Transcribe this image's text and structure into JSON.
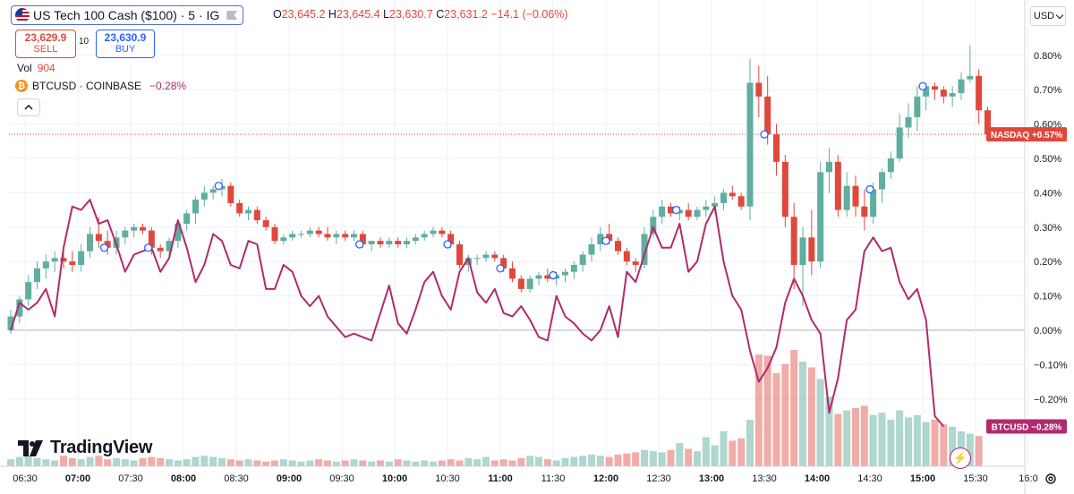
{
  "header": {
    "title": "US Tech 100 Cash ($100) · 5 · IG",
    "ohlc": [
      {
        "label": "O",
        "value": "23,645.2"
      },
      {
        "label": "H",
        "value": "23,645.4"
      },
      {
        "label": "L",
        "value": "23,630.7"
      },
      {
        "label": "C",
        "value": "23,631.2"
      },
      {
        "label": "",
        "value": "−14.1 (−0.06%)"
      }
    ],
    "sell_price": "23,629.9",
    "sell_label": "SELL",
    "spread": "10",
    "buy_price": "23,630.9",
    "buy_label": "BUY",
    "vol_label": "Vol",
    "vol_value": "904",
    "compare_symbol": "BTCUSD · COINBASE",
    "compare_change": "−0.28%",
    "currency": "USD",
    "logo_text": "TradingView"
  },
  "chart_data": {
    "type": "line",
    "percent_axis": {
      "ticks": [
        "0.80%",
        "0.70%",
        "0.60%",
        "0.50%",
        "0.40%",
        "0.30%",
        "0.20%",
        "0.10%",
        "0.00%",
        "−0.10%",
        "−0.20%"
      ],
      "range": [
        -0.32,
        0.88
      ]
    },
    "time_axis": {
      "ticks": [
        "06:30",
        "07:00",
        "07:30",
        "08:00",
        "08:30",
        "09:00",
        "09:30",
        "10:00",
        "10:30",
        "11:00",
        "11:30",
        "12:00",
        "12:30",
        "13:00",
        "13:30",
        "14:00",
        "14:30",
        "15:00",
        "15:30",
        "16:0"
      ],
      "bold": [
        "07:00",
        "08:00",
        "09:00",
        "10:00",
        "11:00",
        "12:00",
        "13:00",
        "14:00",
        "15:00"
      ]
    },
    "series": [
      {
        "name": "NASDAQ",
        "kind": "candlestick",
        "badge": "NASDAQ  +0.57%",
        "color_up": "#5fae9f",
        "color_down": "#e0483c",
        "candles": [
          [
            0.0,
            0.06,
            -0.01,
            0.04
          ],
          [
            0.04,
            0.1,
            0.02,
            0.09
          ],
          [
            0.09,
            0.16,
            0.07,
            0.14
          ],
          [
            0.14,
            0.2,
            0.12,
            0.18
          ],
          [
            0.18,
            0.22,
            0.15,
            0.2
          ],
          [
            0.2,
            0.23,
            0.17,
            0.21
          ],
          [
            0.21,
            0.24,
            0.18,
            0.2
          ],
          [
            0.2,
            0.23,
            0.17,
            0.19
          ],
          [
            0.19,
            0.25,
            0.17,
            0.23
          ],
          [
            0.23,
            0.3,
            0.21,
            0.28
          ],
          [
            0.28,
            0.33,
            0.24,
            0.26
          ],
          [
            0.26,
            0.29,
            0.22,
            0.24
          ],
          [
            0.24,
            0.29,
            0.22,
            0.27
          ],
          [
            0.27,
            0.3,
            0.25,
            0.29
          ],
          [
            0.29,
            0.31,
            0.27,
            0.3
          ],
          [
            0.3,
            0.31,
            0.28,
            0.29
          ],
          [
            0.29,
            0.3,
            0.22,
            0.24
          ],
          [
            0.24,
            0.25,
            0.21,
            0.23
          ],
          [
            0.23,
            0.27,
            0.21,
            0.26
          ],
          [
            0.26,
            0.32,
            0.24,
            0.31
          ],
          [
            0.31,
            0.35,
            0.29,
            0.34
          ],
          [
            0.34,
            0.39,
            0.31,
            0.38
          ],
          [
            0.38,
            0.42,
            0.36,
            0.4
          ],
          [
            0.4,
            0.42,
            0.38,
            0.41
          ],
          [
            0.41,
            0.44,
            0.39,
            0.42
          ],
          [
            0.42,
            0.43,
            0.36,
            0.37
          ],
          [
            0.37,
            0.38,
            0.33,
            0.34
          ],
          [
            0.34,
            0.36,
            0.32,
            0.35
          ],
          [
            0.35,
            0.36,
            0.31,
            0.32
          ],
          [
            0.32,
            0.33,
            0.29,
            0.3
          ],
          [
            0.3,
            0.31,
            0.25,
            0.26
          ],
          [
            0.26,
            0.28,
            0.25,
            0.27
          ],
          [
            0.27,
            0.29,
            0.26,
            0.28
          ],
          [
            0.28,
            0.29,
            0.27,
            0.28
          ],
          [
            0.28,
            0.3,
            0.27,
            0.29
          ],
          [
            0.29,
            0.3,
            0.27,
            0.28
          ],
          [
            0.28,
            0.3,
            0.26,
            0.27
          ],
          [
            0.27,
            0.29,
            0.25,
            0.28
          ],
          [
            0.28,
            0.29,
            0.26,
            0.27
          ],
          [
            0.27,
            0.29,
            0.26,
            0.28
          ],
          [
            0.28,
            0.29,
            0.24,
            0.25
          ],
          [
            0.25,
            0.26,
            0.23,
            0.26
          ],
          [
            0.26,
            0.27,
            0.24,
            0.25
          ],
          [
            0.25,
            0.27,
            0.24,
            0.26
          ],
          [
            0.26,
            0.27,
            0.24,
            0.25
          ],
          [
            0.25,
            0.27,
            0.24,
            0.26
          ],
          [
            0.26,
            0.28,
            0.25,
            0.27
          ],
          [
            0.27,
            0.29,
            0.26,
            0.28
          ],
          [
            0.28,
            0.3,
            0.27,
            0.29
          ],
          [
            0.29,
            0.3,
            0.27,
            0.28
          ],
          [
            0.28,
            0.29,
            0.24,
            0.25
          ],
          [
            0.25,
            0.26,
            0.18,
            0.19
          ],
          [
            0.19,
            0.22,
            0.17,
            0.21
          ],
          [
            0.21,
            0.22,
            0.19,
            0.21
          ],
          [
            0.21,
            0.23,
            0.2,
            0.22
          ],
          [
            0.22,
            0.23,
            0.2,
            0.21
          ],
          [
            0.21,
            0.22,
            0.17,
            0.18
          ],
          [
            0.18,
            0.2,
            0.14,
            0.15
          ],
          [
            0.15,
            0.16,
            0.11,
            0.12
          ],
          [
            0.12,
            0.16,
            0.11,
            0.15
          ],
          [
            0.15,
            0.17,
            0.13,
            0.16
          ],
          [
            0.16,
            0.18,
            0.14,
            0.15
          ],
          [
            0.15,
            0.17,
            0.13,
            0.16
          ],
          [
            0.16,
            0.18,
            0.14,
            0.17
          ],
          [
            0.17,
            0.2,
            0.15,
            0.19
          ],
          [
            0.19,
            0.23,
            0.17,
            0.22
          ],
          [
            0.22,
            0.27,
            0.2,
            0.25
          ],
          [
            0.25,
            0.3,
            0.23,
            0.28
          ],
          [
            0.28,
            0.31,
            0.25,
            0.26
          ],
          [
            0.26,
            0.27,
            0.22,
            0.23
          ],
          [
            0.23,
            0.24,
            0.19,
            0.2
          ],
          [
            0.2,
            0.21,
            0.17,
            0.19
          ],
          [
            0.19,
            0.3,
            0.18,
            0.28
          ],
          [
            0.28,
            0.35,
            0.27,
            0.33
          ],
          [
            0.33,
            0.38,
            0.31,
            0.36
          ],
          [
            0.36,
            0.37,
            0.33,
            0.34
          ],
          [
            0.34,
            0.36,
            0.32,
            0.35
          ],
          [
            0.35,
            0.37,
            0.32,
            0.33
          ],
          [
            0.33,
            0.36,
            0.32,
            0.35
          ],
          [
            0.35,
            0.38,
            0.33,
            0.36
          ],
          [
            0.36,
            0.39,
            0.34,
            0.37
          ],
          [
            0.37,
            0.41,
            0.35,
            0.4
          ],
          [
            0.4,
            0.42,
            0.38,
            0.39
          ],
          [
            0.39,
            0.4,
            0.35,
            0.36
          ],
          [
            0.36,
            0.79,
            0.32,
            0.72
          ],
          [
            0.72,
            0.77,
            0.62,
            0.68
          ],
          [
            0.68,
            0.74,
            0.54,
            0.57
          ],
          [
            0.57,
            0.6,
            0.45,
            0.49
          ],
          [
            0.49,
            0.51,
            0.3,
            0.33
          ],
          [
            0.33,
            0.37,
            0.12,
            0.19
          ],
          [
            0.19,
            0.3,
            0.07,
            0.27
          ],
          [
            0.27,
            0.35,
            0.16,
            0.2
          ],
          [
            0.2,
            0.49,
            0.18,
            0.46
          ],
          [
            0.46,
            0.53,
            0.4,
            0.49
          ],
          [
            0.49,
            0.51,
            0.33,
            0.35
          ],
          [
            0.35,
            0.46,
            0.33,
            0.42
          ],
          [
            0.42,
            0.45,
            0.33,
            0.36
          ],
          [
            0.36,
            0.41,
            0.29,
            0.33
          ],
          [
            0.33,
            0.43,
            0.31,
            0.41
          ],
          [
            0.41,
            0.47,
            0.37,
            0.46
          ],
          [
            0.46,
            0.52,
            0.44,
            0.5
          ],
          [
            0.5,
            0.63,
            0.49,
            0.59
          ],
          [
            0.59,
            0.66,
            0.56,
            0.62
          ],
          [
            0.62,
            0.71,
            0.58,
            0.68
          ],
          [
            0.68,
            0.72,
            0.64,
            0.71
          ],
          [
            0.71,
            0.72,
            0.67,
            0.7
          ],
          [
            0.7,
            0.71,
            0.66,
            0.68
          ],
          [
            0.68,
            0.71,
            0.65,
            0.69
          ],
          [
            0.69,
            0.75,
            0.67,
            0.73
          ],
          [
            0.73,
            0.83,
            0.72,
            0.74
          ],
          [
            0.74,
            0.76,
            0.6,
            0.64
          ],
          [
            0.64,
            0.65,
            0.57,
            0.57
          ]
        ]
      },
      {
        "name": "BTCUSD",
        "kind": "line",
        "badge": "BTCUSD  −0.28%",
        "color": "#b02a6e",
        "values": [
          0.0,
          0.08,
          0.06,
          0.08,
          0.12,
          0.04,
          0.24,
          0.36,
          0.35,
          0.38,
          0.31,
          0.32,
          0.25,
          0.17,
          0.22,
          0.23,
          0.24,
          0.17,
          0.21,
          0.32,
          0.24,
          0.14,
          0.19,
          0.28,
          0.26,
          0.19,
          0.18,
          0.26,
          0.25,
          0.12,
          0.12,
          0.19,
          0.17,
          0.1,
          0.07,
          0.1,
          0.04,
          0.01,
          -0.02,
          -0.01,
          -0.02,
          -0.03,
          0.05,
          0.13,
          0.02,
          -0.01,
          0.06,
          0.14,
          0.17,
          0.1,
          0.06,
          0.17,
          0.21,
          0.11,
          0.08,
          0.12,
          0.05,
          0.04,
          0.07,
          0.03,
          -0.02,
          -0.03,
          0.1,
          0.04,
          0.02,
          -0.01,
          -0.03,
          0.0,
          0.07,
          -0.02,
          0.17,
          0.14,
          0.22,
          0.3,
          0.24,
          0.24,
          0.31,
          0.17,
          0.2,
          0.31,
          0.36,
          0.2,
          0.1,
          0.06,
          -0.06,
          -0.15,
          -0.11,
          -0.05,
          0.08,
          0.15,
          0.1,
          0.03,
          -0.01,
          -0.24,
          -0.14,
          0.03,
          0.06,
          0.23,
          0.27,
          0.23,
          0.24,
          0.14,
          0.09,
          0.12,
          0.03,
          -0.25,
          -0.28
        ]
      },
      {
        "name": "Vol",
        "kind": "volume",
        "values": [
          6,
          8,
          9,
          7,
          6,
          5,
          9,
          7,
          6,
          8,
          9,
          6,
          7,
          6,
          5,
          7,
          8,
          7,
          6,
          5,
          6,
          8,
          9,
          8,
          7,
          6,
          5,
          6,
          5,
          4,
          5,
          6,
          5,
          4,
          5,
          6,
          5,
          4,
          5,
          6,
          5,
          4,
          5,
          4,
          6,
          5,
          4,
          5,
          4,
          5,
          6,
          5,
          7,
          6,
          8,
          5,
          6,
          5,
          7,
          9,
          8,
          6,
          5,
          7,
          8,
          9,
          10,
          9,
          8,
          10,
          11,
          12,
          14,
          13,
          12,
          14,
          20,
          15,
          13,
          25,
          18,
          30,
          22,
          24,
          40,
          96,
          95,
          80,
          88,
          100,
          90,
          85,
          75,
          60,
          45,
          48,
          50,
          52,
          44,
          46,
          40,
          48,
          42,
          44,
          38,
          40,
          36,
          34,
          30,
          28,
          26
        ]
      }
    ],
    "markers": [
      "07:15",
      "07:40",
      "08:20",
      "09:40",
      "10:30",
      "11:00",
      "11:30",
      "12:00",
      "12:40",
      "13:30",
      "14:30",
      "15:00"
    ]
  }
}
